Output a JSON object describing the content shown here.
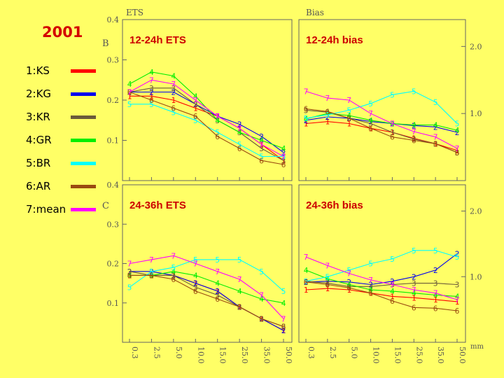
{
  "year": "2001",
  "legend": [
    {
      "label": "1:KS",
      "color": "#ff0000"
    },
    {
      "label": "2:KG",
      "color": "#0000ee"
    },
    {
      "label": "3:KR",
      "color": "#6b5a3a"
    },
    {
      "label": "4:GR",
      "color": "#00ee00"
    },
    {
      "label": "5:BR",
      "color": "#00ffff"
    },
    {
      "label": "6:AR",
      "color": "#9a4a10"
    },
    {
      "label": "7:mean",
      "color": "#ff00ff"
    }
  ],
  "column_titles": {
    "ets": "ETS",
    "bias": "Bias"
  },
  "row_letters": {
    "top": "B",
    "bottom": "C"
  },
  "x_unit": "mm",
  "chart_data": [
    {
      "type": "line",
      "title": "12-24h ETS",
      "categories": [
        "0.3",
        "2.5",
        "5.0",
        "10.0",
        "15.0",
        "25.0",
        "35.0",
        "50.0"
      ],
      "ylim": [
        0,
        0.4
      ],
      "yticks": [
        "0.1",
        "0.2",
        "0.3",
        "0.4"
      ],
      "ytick_values": [
        0.1,
        0.2,
        0.3,
        0.4
      ],
      "series": [
        {
          "name": "1:KS",
          "marker": "1",
          "values": [
            0.21,
            0.21,
            0.2,
            0.18,
            0.16,
            0.13,
            0.09,
            0.05
          ]
        },
        {
          "name": "2:KG",
          "marker": "2",
          "values": [
            0.22,
            0.22,
            0.22,
            0.19,
            0.16,
            0.14,
            0.11,
            0.07
          ]
        },
        {
          "name": "3:KR",
          "marker": "3",
          "values": [
            0.22,
            0.23,
            0.23,
            0.19,
            0.15,
            0.12,
            0.08,
            0.05
          ]
        },
        {
          "name": "4:GR",
          "marker": "4",
          "values": [
            0.24,
            0.27,
            0.26,
            0.21,
            0.15,
            0.12,
            0.1,
            0.08
          ]
        },
        {
          "name": "5:BR",
          "marker": "5",
          "values": [
            0.19,
            0.19,
            0.17,
            0.15,
            0.12,
            0.09,
            0.06,
            0.06
          ]
        },
        {
          "name": "6:AR",
          "marker": "6",
          "values": [
            0.22,
            0.2,
            0.18,
            0.16,
            0.11,
            0.08,
            0.05,
            0.04
          ]
        },
        {
          "name": "7:mean",
          "marker": "7",
          "values": [
            0.22,
            0.25,
            0.24,
            0.2,
            0.16,
            0.13,
            0.09,
            0.06
          ]
        }
      ]
    },
    {
      "type": "line",
      "title": "12-24h bias",
      "categories": [
        "0.3",
        "2.5",
        "5.0",
        "10.0",
        "15.0",
        "25.0",
        "35.0",
        "50.0"
      ],
      "ylim": [
        0,
        2.4
      ],
      "yticks": [
        "1.0",
        "2.0"
      ],
      "ytick_values": [
        1.0,
        2.0
      ],
      "series": [
        {
          "name": "1:KS",
          "marker": "1",
          "values": [
            0.85,
            0.88,
            0.85,
            0.78,
            0.72,
            0.63,
            0.55,
            0.45
          ]
        },
        {
          "name": "2:KG",
          "marker": "2",
          "values": [
            0.9,
            0.95,
            0.93,
            0.88,
            0.85,
            0.82,
            0.8,
            0.72
          ]
        },
        {
          "name": "3:KR",
          "marker": "3",
          "values": [
            1.05,
            1.02,
            0.93,
            0.85,
            0.72,
            0.62,
            0.55,
            0.42
          ]
        },
        {
          "name": "4:GR",
          "marker": "4",
          "values": [
            0.92,
            1.0,
            0.97,
            0.9,
            0.85,
            0.83,
            0.83,
            0.75
          ]
        },
        {
          "name": "5:BR",
          "marker": "5",
          "values": [
            0.93,
            0.98,
            1.05,
            1.15,
            1.28,
            1.33,
            1.17,
            0.85
          ]
        },
        {
          "name": "6:AR",
          "marker": "6",
          "values": [
            1.07,
            1.03,
            0.93,
            0.78,
            0.65,
            0.6,
            0.55,
            0.42
          ]
        },
        {
          "name": "7:mean",
          "marker": "7",
          "values": [
            1.33,
            1.23,
            1.2,
            1.0,
            0.85,
            0.73,
            0.65,
            0.48
          ]
        }
      ]
    },
    {
      "type": "line",
      "title": "24-36h ETS",
      "categories": [
        "0.3",
        "2.5",
        "5.0",
        "10.0",
        "15.0",
        "25.0",
        "35.0",
        "50.0"
      ],
      "ylim": [
        0,
        0.4
      ],
      "yticks": [
        "0.1",
        "0.2",
        "0.3",
        "0.4"
      ],
      "ytick_values": [
        0.1,
        0.2,
        0.3,
        0.4
      ],
      "series": [
        {
          "name": "1:KS",
          "marker": "1",
          "values": [
            0.17,
            0.17,
            0.17,
            0.15,
            0.13,
            0.09,
            0.06,
            0.03
          ]
        },
        {
          "name": "2:KG",
          "marker": "2",
          "values": [
            0.18,
            0.18,
            0.17,
            0.15,
            0.13,
            0.09,
            0.06,
            0.03
          ]
        },
        {
          "name": "3:KR",
          "marker": "3",
          "values": [
            0.18,
            0.17,
            0.17,
            0.14,
            0.12,
            0.09,
            0.06,
            0.04
          ]
        },
        {
          "name": "4:GR",
          "marker": "4",
          "values": [
            0.17,
            0.17,
            0.18,
            0.17,
            0.15,
            0.13,
            0.11,
            0.1
          ]
        },
        {
          "name": "5:BR",
          "marker": "5",
          "values": [
            0.14,
            0.18,
            0.19,
            0.21,
            0.21,
            0.21,
            0.18,
            0.13
          ]
        },
        {
          "name": "6:AR",
          "marker": "6",
          "values": [
            0.17,
            0.17,
            0.16,
            0.13,
            0.11,
            0.09,
            0.06,
            0.04
          ]
        },
        {
          "name": "7:mean",
          "marker": "7",
          "values": [
            0.2,
            0.21,
            0.22,
            0.2,
            0.18,
            0.16,
            0.12,
            0.06
          ]
        }
      ]
    },
    {
      "type": "line",
      "title": "24-36h bias",
      "categories": [
        "0.3",
        "2.5",
        "5.0",
        "10.0",
        "15.0",
        "25.0",
        "35.0",
        "50.0"
      ],
      "ylim": [
        0,
        2.4
      ],
      "yticks": [
        "1.0",
        "2.0"
      ],
      "ytick_values": [
        1.0,
        2.0
      ],
      "series": [
        {
          "name": "1:KS",
          "marker": "1",
          "values": [
            0.8,
            0.82,
            0.8,
            0.75,
            0.7,
            0.68,
            0.65,
            0.62
          ]
        },
        {
          "name": "2:KG",
          "marker": "2",
          "values": [
            0.92,
            0.93,
            0.92,
            0.88,
            0.93,
            1.0,
            1.1,
            1.35
          ]
        },
        {
          "name": "3:KR",
          "marker": "3",
          "values": [
            0.93,
            0.9,
            0.85,
            0.85,
            0.88,
            0.9,
            0.9,
            0.88
          ]
        },
        {
          "name": "4:GR",
          "marker": "4",
          "values": [
            1.1,
            0.97,
            0.88,
            0.8,
            0.78,
            0.75,
            0.72,
            0.7
          ]
        },
        {
          "name": "5:BR",
          "marker": "5",
          "values": [
            0.93,
            1.0,
            1.1,
            1.2,
            1.27,
            1.4,
            1.4,
            1.3
          ]
        },
        {
          "name": "6:AR",
          "marker": "6",
          "values": [
            0.92,
            0.88,
            0.83,
            0.75,
            0.63,
            0.53,
            0.52,
            0.48
          ]
        },
        {
          "name": "7:mean",
          "marker": "7",
          "values": [
            1.3,
            1.17,
            1.05,
            0.95,
            0.88,
            0.8,
            0.75,
            0.65
          ]
        }
      ]
    }
  ]
}
